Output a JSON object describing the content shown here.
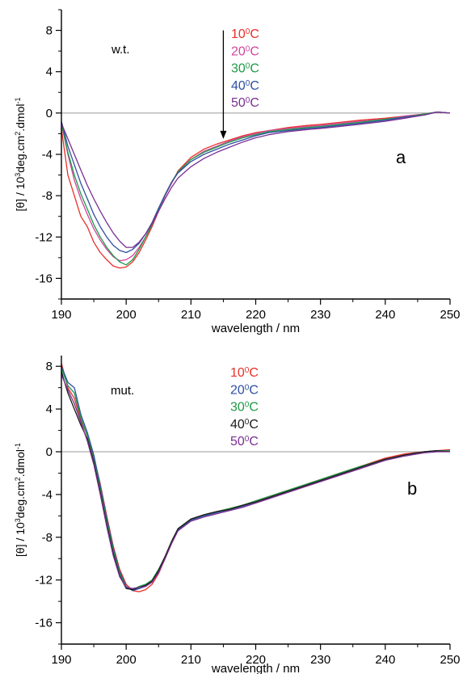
{
  "chart_data": [
    {
      "type": "line",
      "panel_tag": "a",
      "sample_label": "w.t.",
      "xlabel": "wavelength / nm",
      "ylabel_parts": [
        "[θ] / 10",
        "3",
        "deg.cm",
        "2",
        ".dmol",
        "-1"
      ],
      "xlim": [
        190,
        250
      ],
      "ylim": [
        -18,
        10
      ],
      "xticks": [
        190,
        200,
        210,
        220,
        230,
        240,
        250
      ],
      "yticks": [
        -16,
        -12,
        -8,
        -4,
        0,
        4,
        8
      ],
      "zero_line": true,
      "arrow": {
        "x": 215,
        "y_from": 8,
        "y_to": -2.5
      },
      "series": [
        {
          "name_parts": [
            "10",
            "0",
            "C"
          ],
          "color": "#e8302a",
          "x": [
            190,
            191,
            192,
            193,
            194,
            195,
            196,
            197,
            198,
            199,
            200,
            201,
            202,
            203,
            204,
            205,
            206,
            207,
            208,
            210,
            212,
            214,
            216,
            218,
            220,
            222,
            225,
            228,
            230,
            233,
            236,
            240,
            243,
            246,
            248,
            250
          ],
          "y": [
            -1.5,
            -6.0,
            -8.0,
            -10.0,
            -11.0,
            -12.5,
            -13.5,
            -14.2,
            -14.8,
            -15.0,
            -14.9,
            -14.4,
            -13.5,
            -12.3,
            -11.0,
            -9.5,
            -8.0,
            -6.8,
            -5.6,
            -4.3,
            -3.5,
            -3.0,
            -2.6,
            -2.2,
            -1.9,
            -1.7,
            -1.4,
            -1.2,
            -1.1,
            -0.9,
            -0.7,
            -0.5,
            -0.3,
            -0.1,
            0.1,
            0.0
          ]
        },
        {
          "name_parts": [
            "20",
            "0",
            "C"
          ],
          "color": "#d1469e",
          "x": [
            190,
            191,
            192,
            193,
            194,
            195,
            196,
            197,
            198,
            199,
            200,
            201,
            202,
            203,
            204,
            205,
            206,
            207,
            208,
            210,
            212,
            214,
            216,
            218,
            220,
            222,
            225,
            228,
            230,
            233,
            236,
            240,
            243,
            246,
            248,
            250
          ],
          "y": [
            -1.0,
            -4.0,
            -6.5,
            -8.3,
            -9.8,
            -11.2,
            -12.3,
            -13.2,
            -13.9,
            -14.3,
            -14.2,
            -13.8,
            -13.0,
            -12.0,
            -10.8,
            -9.4,
            -8.0,
            -6.8,
            -5.7,
            -4.5,
            -3.7,
            -3.2,
            -2.7,
            -2.3,
            -2.0,
            -1.7,
            -1.5,
            -1.3,
            -1.2,
            -1.0,
            -0.8,
            -0.6,
            -0.3,
            -0.1,
            0.1,
            0.0
          ]
        },
        {
          "name_parts": [
            "30",
            "0",
            "C"
          ],
          "color": "#1f9a47",
          "x": [
            190,
            191,
            192,
            193,
            194,
            195,
            196,
            197,
            198,
            199,
            200,
            201,
            202,
            203,
            204,
            205,
            206,
            207,
            208,
            210,
            212,
            214,
            216,
            218,
            220,
            222,
            225,
            228,
            230,
            233,
            236,
            240,
            243,
            246,
            248,
            250
          ],
          "y": [
            -1.0,
            -3.8,
            -6.0,
            -7.8,
            -9.3,
            -10.8,
            -12.0,
            -13.0,
            -13.8,
            -14.4,
            -14.7,
            -14.2,
            -13.2,
            -12.0,
            -10.8,
            -9.3,
            -7.9,
            -6.7,
            -5.7,
            -4.5,
            -3.8,
            -3.3,
            -2.8,
            -2.4,
            -2.1,
            -1.8,
            -1.6,
            -1.4,
            -1.3,
            -1.1,
            -0.9,
            -0.6,
            -0.4,
            -0.1,
            0.1,
            0.0
          ]
        },
        {
          "name_parts": [
            "40",
            "0",
            "C"
          ],
          "color": "#2e4fa3",
          "x": [
            190,
            191,
            192,
            193,
            194,
            195,
            196,
            197,
            198,
            199,
            200,
            201,
            202,
            203,
            204,
            205,
            206,
            207,
            208,
            210,
            212,
            214,
            216,
            218,
            220,
            222,
            225,
            228,
            230,
            233,
            236,
            240,
            243,
            246,
            248,
            250
          ],
          "y": [
            -0.8,
            -3.2,
            -5.0,
            -6.8,
            -8.3,
            -9.8,
            -11.0,
            -12.0,
            -12.8,
            -13.3,
            -13.5,
            -13.2,
            -12.6,
            -11.7,
            -10.6,
            -9.2,
            -7.9,
            -6.7,
            -5.8,
            -4.7,
            -4.0,
            -3.5,
            -3.0,
            -2.6,
            -2.2,
            -1.9,
            -1.7,
            -1.5,
            -1.4,
            -1.2,
            -1.0,
            -0.7,
            -0.4,
            -0.2,
            0.1,
            0.0
          ]
        },
        {
          "name_parts": [
            "50",
            "0",
            "C"
          ],
          "color": "#7a2f91",
          "x": [
            190,
            191,
            192,
            193,
            194,
            195,
            196,
            197,
            198,
            199,
            200,
            201,
            202,
            203,
            204,
            205,
            206,
            207,
            208,
            210,
            212,
            214,
            216,
            218,
            220,
            222,
            225,
            228,
            230,
            233,
            236,
            240,
            243,
            246,
            248,
            250
          ],
          "y": [
            -1.0,
            -2.5,
            -4.0,
            -5.5,
            -7.0,
            -8.3,
            -9.5,
            -10.6,
            -11.6,
            -12.4,
            -13.0,
            -13.0,
            -12.5,
            -11.7,
            -10.7,
            -9.5,
            -8.3,
            -7.2,
            -6.3,
            -5.2,
            -4.4,
            -3.8,
            -3.3,
            -2.8,
            -2.4,
            -2.1,
            -1.8,
            -1.6,
            -1.5,
            -1.3,
            -1.1,
            -0.8,
            -0.5,
            -0.2,
            0.1,
            0.0
          ]
        }
      ]
    },
    {
      "type": "line",
      "panel_tag": "b",
      "sample_label": "mut.",
      "xlabel": "wavelength / nm",
      "ylabel_parts": [
        "[θ] / 10",
        "3",
        "deg.cm",
        "2",
        ".dmol",
        "-1"
      ],
      "xlim": [
        190,
        250
      ],
      "ylim": [
        -18,
        9
      ],
      "xticks": [
        190,
        200,
        210,
        220,
        230,
        240,
        250
      ],
      "yticks": [
        -16,
        -12,
        -8,
        -4,
        0,
        4,
        8
      ],
      "zero_line": true,
      "series": [
        {
          "name_parts": [
            "10",
            "0",
            "C"
          ],
          "color": "#e8302a",
          "x": [
            190,
            191,
            192,
            193,
            194,
            195,
            196,
            197,
            198,
            199,
            200,
            201,
            202,
            203,
            204,
            205,
            206,
            207,
            208,
            210,
            212,
            214,
            216,
            218,
            220,
            222,
            225,
            228,
            230,
            233,
            236,
            240,
            243,
            246,
            248,
            250
          ],
          "y": [
            8.3,
            6.0,
            5.0,
            3.0,
            1.5,
            -0.5,
            -3.0,
            -6.0,
            -8.8,
            -11.0,
            -12.4,
            -13.0,
            -13.1,
            -12.9,
            -12.4,
            -11.4,
            -10.0,
            -8.6,
            -7.3,
            -6.3,
            -5.9,
            -5.6,
            -5.3,
            -5.0,
            -4.6,
            -4.2,
            -3.6,
            -3.0,
            -2.6,
            -2.0,
            -1.4,
            -0.6,
            -0.2,
            0.0,
            0.1,
            0.2
          ]
        },
        {
          "name_parts": [
            "20",
            "0",
            "C"
          ],
          "color": "#2e4fa3",
          "x": [
            190,
            191,
            192,
            193,
            194,
            195,
            196,
            197,
            198,
            199,
            200,
            201,
            202,
            203,
            204,
            205,
            206,
            207,
            208,
            210,
            212,
            214,
            216,
            218,
            220,
            222,
            225,
            228,
            230,
            233,
            236,
            240,
            243,
            246,
            248,
            250
          ],
          "y": [
            8.0,
            6.5,
            6.0,
            3.5,
            1.8,
            -0.3,
            -3.2,
            -6.2,
            -9.0,
            -11.2,
            -12.6,
            -13.0,
            -12.8,
            -12.6,
            -12.2,
            -11.2,
            -9.9,
            -8.5,
            -7.3,
            -6.4,
            -6.0,
            -5.7,
            -5.4,
            -5.1,
            -4.7,
            -4.3,
            -3.7,
            -3.1,
            -2.7,
            -2.1,
            -1.5,
            -0.7,
            -0.3,
            0.0,
            0.1,
            0.1
          ]
        },
        {
          "name_parts": [
            "30",
            "0",
            "C"
          ],
          "color": "#1f9a47",
          "x": [
            190,
            191,
            192,
            193,
            194,
            195,
            196,
            197,
            198,
            199,
            200,
            201,
            202,
            203,
            204,
            205,
            206,
            207,
            208,
            210,
            212,
            214,
            216,
            218,
            220,
            222,
            225,
            228,
            230,
            233,
            236,
            240,
            243,
            246,
            248,
            250
          ],
          "y": [
            7.8,
            6.2,
            5.5,
            3.2,
            1.5,
            -0.8,
            -3.5,
            -6.5,
            -9.2,
            -11.4,
            -12.7,
            -12.9,
            -12.6,
            -12.4,
            -12.0,
            -11.0,
            -9.8,
            -8.4,
            -7.2,
            -6.3,
            -5.9,
            -5.6,
            -5.3,
            -5.0,
            -4.6,
            -4.2,
            -3.6,
            -3.0,
            -2.6,
            -2.0,
            -1.4,
            -0.7,
            -0.3,
            0.0,
            0.1,
            0.1
          ]
        },
        {
          "name_parts": [
            "40",
            "0",
            "C"
          ],
          "color": "#1a1a1a",
          "x": [
            190,
            191,
            192,
            193,
            194,
            195,
            196,
            197,
            198,
            199,
            200,
            201,
            202,
            203,
            204,
            205,
            206,
            207,
            208,
            210,
            212,
            214,
            216,
            218,
            220,
            222,
            225,
            228,
            230,
            233,
            236,
            240,
            243,
            246,
            248,
            250
          ],
          "y": [
            7.5,
            5.5,
            4.0,
            2.5,
            1.2,
            -1.0,
            -3.8,
            -6.8,
            -9.5,
            -11.6,
            -12.8,
            -12.9,
            -12.7,
            -12.5,
            -12.1,
            -11.1,
            -9.8,
            -8.4,
            -7.2,
            -6.3,
            -5.9,
            -5.6,
            -5.4,
            -5.0,
            -4.7,
            -4.3,
            -3.7,
            -3.1,
            -2.7,
            -2.1,
            -1.5,
            -0.7,
            -0.3,
            0.0,
            0.1,
            0.0
          ]
        },
        {
          "name_parts": [
            "50",
            "0",
            "C"
          ],
          "color": "#7a2f91",
          "x": [
            190,
            191,
            192,
            193,
            194,
            195,
            196,
            197,
            198,
            199,
            200,
            201,
            202,
            203,
            204,
            205,
            206,
            207,
            208,
            210,
            212,
            214,
            216,
            218,
            220,
            222,
            225,
            228,
            230,
            233,
            236,
            240,
            243,
            246,
            248,
            250
          ],
          "y": [
            7.2,
            5.8,
            4.5,
            2.8,
            1.0,
            -1.2,
            -4.0,
            -7.0,
            -9.7,
            -11.7,
            -12.7,
            -12.8,
            -12.7,
            -12.6,
            -12.2,
            -11.3,
            -10.0,
            -8.6,
            -7.4,
            -6.5,
            -6.1,
            -5.8,
            -5.5,
            -5.2,
            -4.8,
            -4.4,
            -3.8,
            -3.2,
            -2.8,
            -2.2,
            -1.6,
            -0.8,
            -0.4,
            -0.1,
            0.0,
            0.0
          ]
        }
      ]
    }
  ]
}
